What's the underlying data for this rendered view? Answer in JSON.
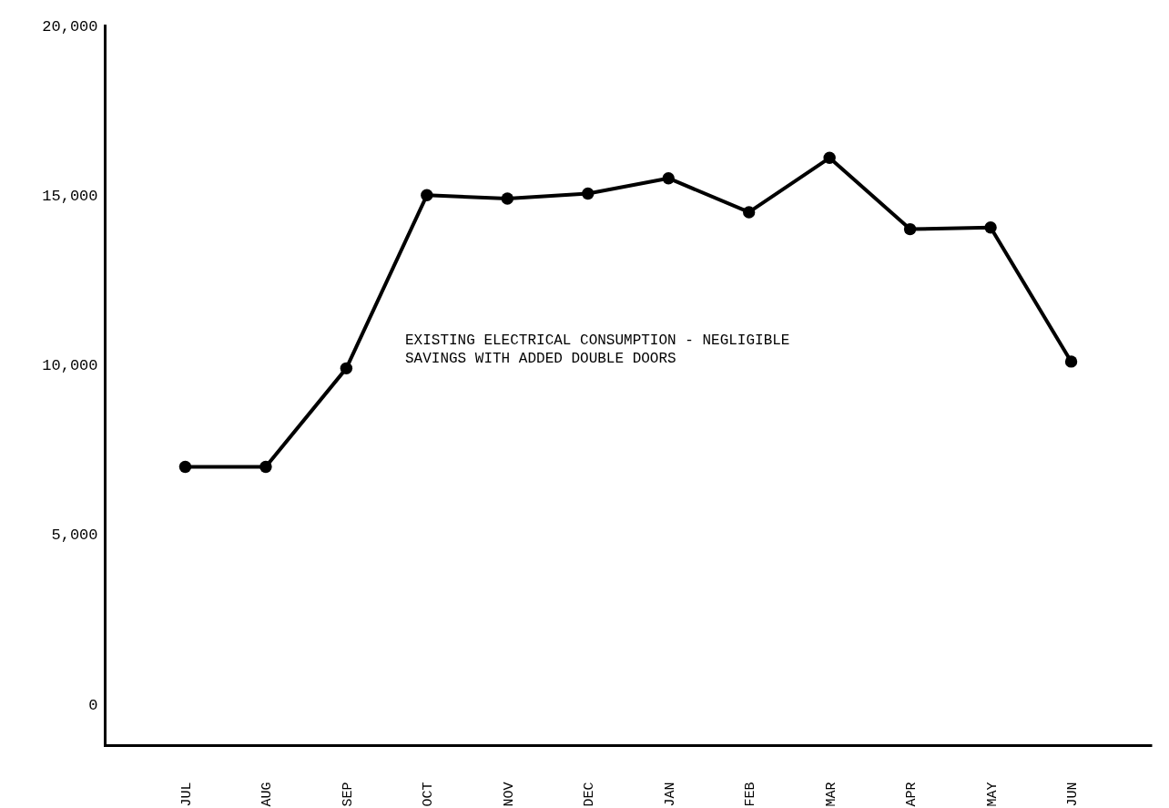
{
  "chart_data": {
    "type": "line",
    "categories": [
      "JUL",
      "AUG",
      "SEP",
      "OCT",
      "NOV",
      "DEC",
      "JAN",
      "FEB",
      "MAR",
      "APR",
      "MAY",
      "JUN"
    ],
    "series": [
      {
        "color": "#000000",
        "values": [
          7000,
          7000,
          9900,
          15000,
          14900,
          15050,
          15500,
          14500,
          16100,
          14000,
          14050,
          10100
        ]
      }
    ],
    "ylim": [
      -1200,
      20000
    ],
    "yticks": [
      0,
      {
        "value": 5000,
        "label": "5,000"
      },
      {
        "value": 10000,
        "label": "10,000"
      },
      {
        "value": 15000,
        "label": "15,000"
      },
      {
        "value": 20000,
        "label": "20,000"
      }
    ],
    "grid": false,
    "marker": "circle",
    "line_style": "solid",
    "annotations": [
      "EXISTING ELECTRICAL CONSUMPTION - NEGLIGIBLE SAVINGS WITH ADDED DOUBLE DOORS"
    ]
  }
}
